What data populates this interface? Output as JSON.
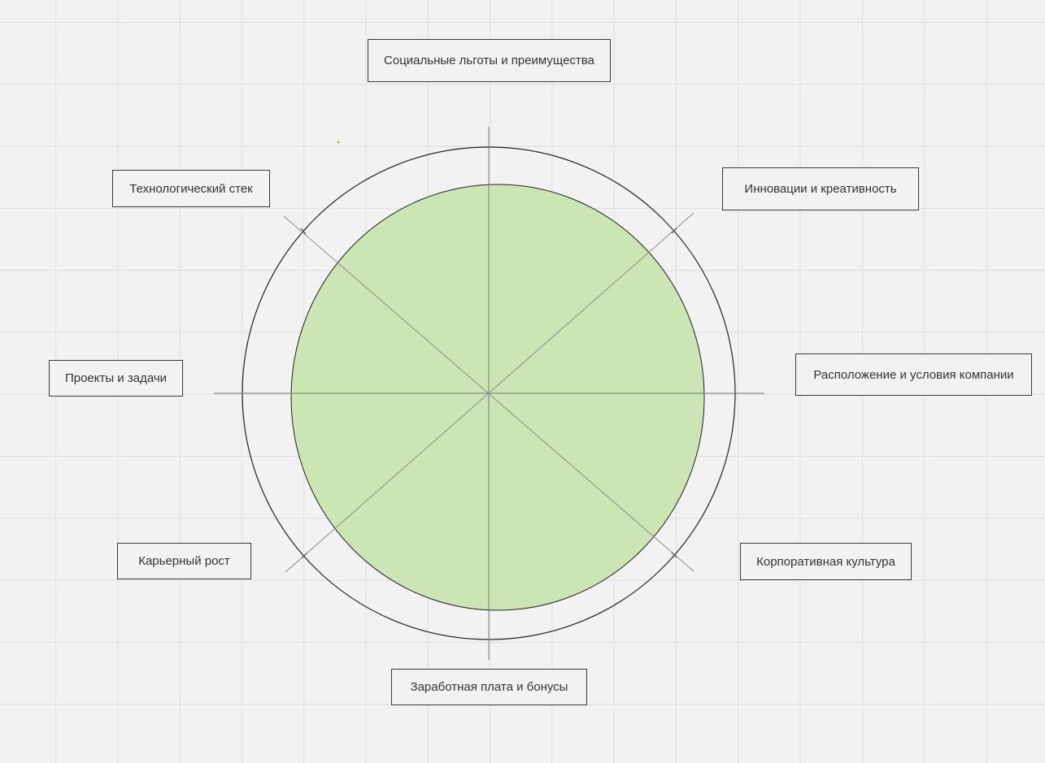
{
  "diagram": {
    "segments": [
      {
        "id": "social",
        "label": "Социальные льготы и преимущества"
      },
      {
        "id": "innov",
        "label": "Инновации и креативность"
      },
      {
        "id": "location",
        "label": "Расположение и условия компании"
      },
      {
        "id": "culture",
        "label": "Корпоративная культура"
      },
      {
        "id": "salary",
        "label": "Заработная плата и бонусы"
      },
      {
        "id": "career",
        "label": "Карьерный рост"
      },
      {
        "id": "projects",
        "label": "Проекты и задачи"
      },
      {
        "id": "tech",
        "label": "Технологический стек"
      }
    ]
  },
  "colors": {
    "background": "#f2f2f2",
    "grid": "#dedede",
    "inner_fill": "#c9e4b1",
    "stroke": "#222222",
    "axis": "#7a7a7a",
    "marker_dot": "#a8c93a"
  }
}
